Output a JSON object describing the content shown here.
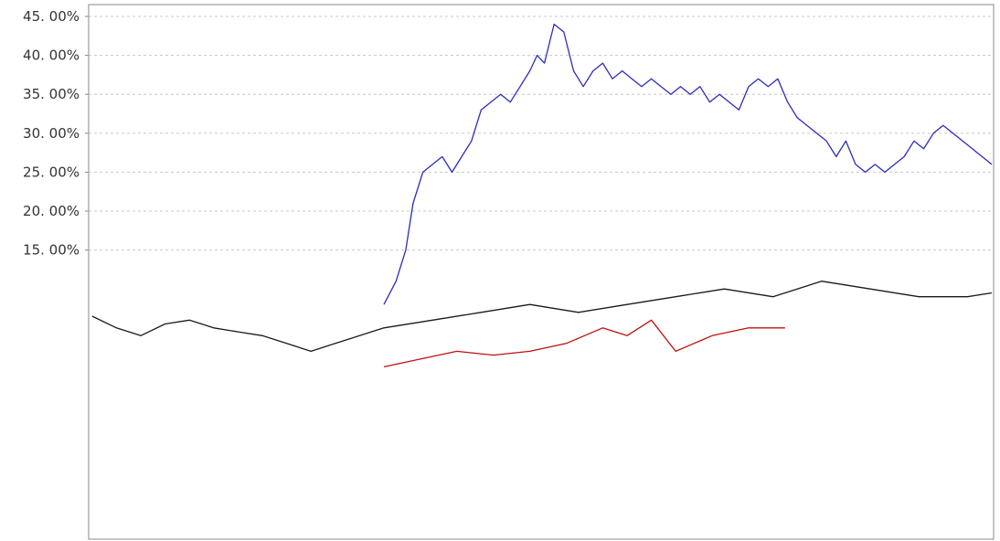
{
  "chart_data": {
    "type": "line",
    "ylim": [
      0,
      45
    ],
    "y_ticks": [
      "45. 00%",
      "40. 00%",
      "35. 00%",
      "30. 00%",
      "25. 00%",
      "20. 00%",
      "15. 00%"
    ],
    "y_tick_values": [
      45,
      40,
      35,
      30,
      25,
      20,
      15
    ],
    "grid": true,
    "series": [
      {
        "color": "#2b2bbf",
        "x": [
          0,
          5,
          9,
          12,
          16,
          20,
          24,
          28,
          32,
          36,
          40,
          44,
          48,
          52,
          56,
          60,
          63,
          66,
          70,
          74,
          78,
          82,
          86,
          90,
          94,
          98,
          102,
          106,
          110,
          114,
          118,
          122,
          126,
          130,
          134,
          138,
          142,
          146,
          150,
          154,
          158,
          162,
          166,
          170,
          174,
          178,
          182,
          186,
          190,
          194,
          198,
          202,
          206,
          210,
          214,
          218,
          222,
          226,
          230,
          234,
          238,
          242,
          246,
          250
        ],
        "y": [
          8,
          11,
          15,
          21,
          25,
          26,
          27,
          25,
          27,
          29,
          33,
          34,
          35,
          34,
          36,
          38,
          40,
          39,
          44,
          43,
          38,
          36,
          38,
          39,
          37,
          38,
          37,
          36,
          37,
          36,
          35,
          36,
          35,
          36,
          34,
          35,
          34,
          33,
          36,
          37,
          36,
          37,
          34,
          32,
          31,
          30,
          29,
          27,
          29,
          26,
          25,
          26,
          25,
          26,
          27,
          29,
          28,
          30,
          31,
          30,
          29,
          28,
          27,
          26
        ]
      },
      {
        "color": "#1a1a1a",
        "x": [
          -120,
          -110,
          -100,
          -90,
          -80,
          -70,
          -60,
          -50,
          -40,
          -30,
          -20,
          -10,
          0,
          20,
          40,
          60,
          80,
          100,
          120,
          140,
          160,
          180,
          200,
          220,
          240,
          250
        ],
        "y": [
          6.5,
          5,
          4,
          5.5,
          6,
          5,
          4.5,
          4,
          3,
          2,
          3,
          4,
          5,
          6,
          7,
          8,
          7,
          8,
          9,
          10,
          9,
          11,
          10,
          9,
          9,
          9.5
        ]
      },
      {
        "color": "#c01010",
        "x": [
          0,
          15,
          30,
          45,
          60,
          75,
          90,
          100,
          110,
          120,
          135,
          150,
          165
        ],
        "y": [
          0,
          1,
          2,
          1.5,
          2,
          3,
          5,
          4,
          6,
          2,
          4,
          5,
          5
        ]
      }
    ]
  }
}
